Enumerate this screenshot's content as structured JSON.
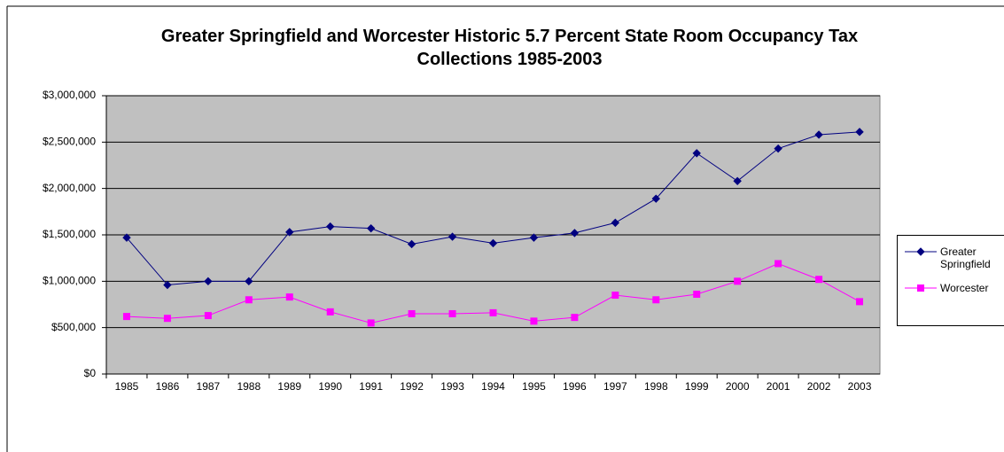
{
  "chart_data": {
    "type": "line",
    "title": "Greater Springfield and Worcester Historic 5.7 Percent State Room Occupancy Tax Collections 1985-2003",
    "categories": [
      "1985",
      "1986",
      "1987",
      "1988",
      "1989",
      "1990",
      "1991",
      "1992",
      "1993",
      "1994",
      "1995",
      "1996",
      "1997",
      "1998",
      "1999",
      "2000",
      "2001",
      "2002",
      "2003"
    ],
    "series": [
      {
        "name": "Greater Springfield",
        "color": "#000080",
        "marker": "diamond",
        "values": [
          1470000,
          960000,
          1000000,
          1000000,
          1530000,
          1590000,
          1570000,
          1400000,
          1480000,
          1410000,
          1470000,
          1520000,
          1630000,
          1890000,
          2380000,
          2080000,
          2430000,
          2580000,
          2610000
        ]
      },
      {
        "name": "Worcester",
        "color": "#ff00ff",
        "marker": "square",
        "values": [
          620000,
          600000,
          630000,
          800000,
          830000,
          670000,
          550000,
          650000,
          650000,
          660000,
          570000,
          610000,
          850000,
          800000,
          860000,
          1000000,
          1190000,
          1020000,
          780000
        ]
      }
    ],
    "ylim": [
      0,
      3000000
    ],
    "yticks": [
      {
        "value": 0,
        "label": "$0"
      },
      {
        "value": 500000,
        "label": "$500,000"
      },
      {
        "value": 1000000,
        "label": "$1,000,000"
      },
      {
        "value": 1500000,
        "label": "$1,500,000"
      },
      {
        "value": 2000000,
        "label": "$2,000,000"
      },
      {
        "value": 2500000,
        "label": "$2,500,000"
      },
      {
        "value": 3000000,
        "label": "$3,000,000"
      }
    ],
    "grid": true,
    "plot_background": "#c0c0c0",
    "legend": "right"
  }
}
